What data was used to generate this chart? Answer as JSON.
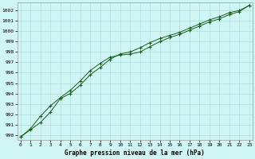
{
  "title": "Graphe pression niveau de la mer (hPa)",
  "background_color": "#cff5f5",
  "grid_color": "#b0dede",
  "line_color": "#1a5e1a",
  "marker_color": "#1a5e1a",
  "x_values": [
    0,
    1,
    2,
    3,
    4,
    5,
    6,
    7,
    8,
    9,
    10,
    11,
    12,
    13,
    14,
    15,
    16,
    17,
    18,
    19,
    20,
    21,
    22,
    23
  ],
  "y_line1": [
    989.8,
    990.5,
    991.2,
    992.2,
    993.5,
    994.0,
    994.8,
    995.8,
    996.5,
    997.3,
    997.8,
    998.0,
    998.4,
    998.9,
    999.3,
    999.6,
    999.9,
    1000.3,
    1000.7,
    1001.1,
    1001.4,
    1001.8,
    1002.0,
    1002.5
  ],
  "y_line2": [
    989.8,
    990.6,
    991.8,
    992.8,
    993.6,
    994.3,
    995.2,
    996.2,
    996.9,
    997.5,
    997.7,
    997.8,
    998.0,
    998.5,
    999.0,
    999.4,
    999.7,
    1000.1,
    1000.5,
    1000.9,
    1001.2,
    1001.6,
    1001.9,
    1002.5
  ],
  "ylim_min": 989.5,
  "ylim_max": 1002.8,
  "xlim_min": -0.3,
  "xlim_max": 23.3,
  "yticks": [
    990,
    991,
    992,
    993,
    994,
    995,
    996,
    997,
    998,
    999,
    1000,
    1001,
    1002
  ],
  "xticks": [
    0,
    1,
    2,
    3,
    4,
    5,
    6,
    7,
    8,
    9,
    10,
    11,
    12,
    13,
    14,
    15,
    16,
    17,
    18,
    19,
    20,
    21,
    22,
    23
  ]
}
